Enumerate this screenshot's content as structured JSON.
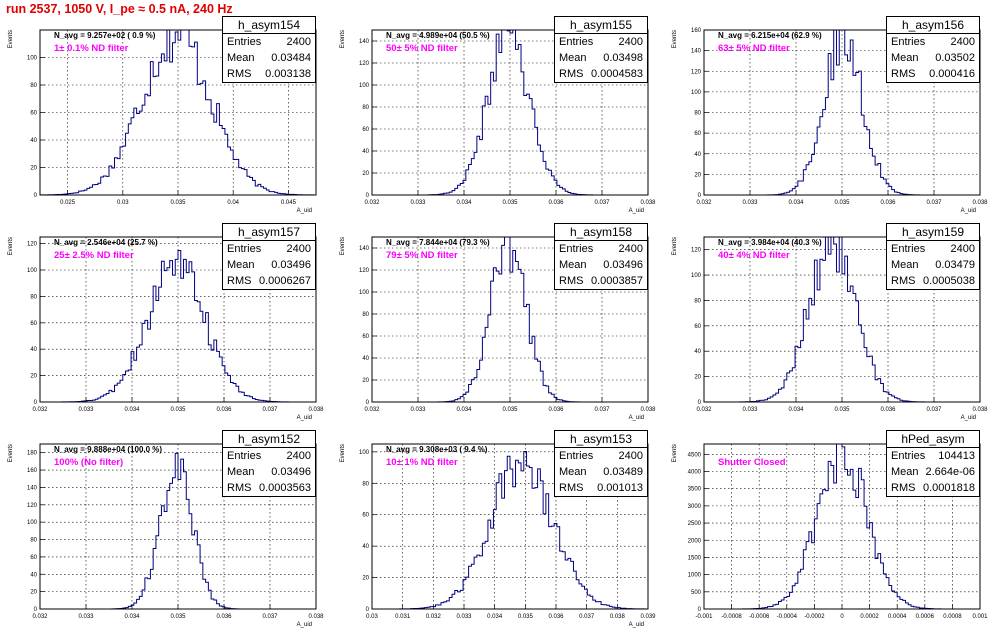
{
  "run_title": "run 2537,  1050 V, I_pe ≈ 0.5 nA, 240 Hz",
  "chart_data": [
    {
      "type": "histogram",
      "name": "h_asym154",
      "navg_label": "N_avg = 9.257e+02 ( 0.9 %)",
      "filter_label": "1± 0.1% ND filter",
      "stats": {
        "entries": "2400",
        "mean": "0.03484",
        "rms": "0.003138"
      },
      "xlabel": "A_uid",
      "ylabel": "Events",
      "xlim": [
        0.0225,
        0.0475
      ],
      "ylim": [
        0,
        120
      ],
      "x_ticks": [
        0.025,
        0.03,
        0.035,
        0.04,
        0.045
      ],
      "x_tick_labels": [
        "0.025",
        "0.03",
        "0.035",
        "0.04",
        "0.045"
      ],
      "y_ticks": [
        0,
        20,
        40,
        60,
        80,
        100
      ],
      "y_tick_labels": [
        "0",
        "20",
        "40",
        "60",
        "80",
        "100"
      ],
      "peak": 117
    },
    {
      "type": "histogram",
      "name": "h_asym155",
      "navg_label": "N_avg = 4.989e+04 (50.5 %)",
      "filter_label": "50± 5% ND filter",
      "stats": {
        "entries": "2400",
        "mean": "0.03498",
        "rms": "0.0004583"
      },
      "xlabel": "A_uid",
      "ylabel": "Events",
      "xlim": [
        0.032,
        0.038
      ],
      "ylim": [
        0,
        150
      ],
      "x_ticks": [
        0.032,
        0.033,
        0.034,
        0.035,
        0.036,
        0.037,
        0.038
      ],
      "x_tick_labels": [
        "0.032",
        "0.033",
        "0.034",
        "0.035",
        "0.036",
        "0.037",
        "0.038"
      ],
      "y_ticks": [
        0,
        20,
        40,
        60,
        80,
        100,
        120,
        140
      ],
      "y_tick_labels": [
        "0",
        "20",
        "40",
        "60",
        "80",
        "100",
        "120",
        "140"
      ],
      "peak": 145
    },
    {
      "type": "histogram",
      "name": "h_asym156",
      "navg_label": "N_avg = 6.215e+04 (62.9 %)",
      "filter_label": "63± 5% ND filter",
      "stats": {
        "entries": "2400",
        "mean": "0.03502",
        "rms": "0.000416"
      },
      "xlabel": "A_uid",
      "ylabel": "Events",
      "xlim": [
        0.032,
        0.038
      ],
      "ylim": [
        0,
        160
      ],
      "x_ticks": [
        0.032,
        0.033,
        0.034,
        0.035,
        0.036,
        0.037,
        0.038
      ],
      "x_tick_labels": [
        "0.032",
        "0.033",
        "0.034",
        "0.035",
        "0.036",
        "0.037",
        "0.038"
      ],
      "y_ticks": [
        0,
        20,
        40,
        60,
        80,
        100,
        120,
        140,
        160
      ],
      "y_tick_labels": [
        "0",
        "20",
        "40",
        "60",
        "80",
        "100",
        "120",
        "140",
        "160"
      ],
      "peak": 158
    },
    {
      "type": "histogram",
      "name": "h_asym157",
      "navg_label": "N_avg = 2.546e+04 (25.7 %)",
      "filter_label": "25± 2.5% ND filter",
      "stats": {
        "entries": "2400",
        "mean": "0.03496",
        "rms": "0.0006267"
      },
      "xlabel": "A_uid",
      "ylabel": "Events",
      "xlim": [
        0.032,
        0.038
      ],
      "ylim": [
        0,
        125
      ],
      "x_ticks": [
        0.032,
        0.033,
        0.034,
        0.035,
        0.036,
        0.037,
        0.038
      ],
      "x_tick_labels": [
        "0.032",
        "0.033",
        "0.034",
        "0.035",
        "0.036",
        "0.037",
        "0.038"
      ],
      "y_ticks": [
        0,
        20,
        40,
        60,
        80,
        100,
        120
      ],
      "y_tick_labels": [
        "0",
        "20",
        "40",
        "60",
        "80",
        "100",
        "120"
      ],
      "peak": 102
    },
    {
      "type": "histogram",
      "name": "h_asym158",
      "navg_label": "N_avg = 7.844e+04 (79.3 %)",
      "filter_label": "79± 5% ND filter",
      "stats": {
        "entries": "2400",
        "mean": "0.03496",
        "rms": "0.0003857"
      },
      "xlabel": "A_uid",
      "ylabel": "Events",
      "xlim": [
        0.032,
        0.038
      ],
      "ylim": [
        0,
        150
      ],
      "x_ticks": [
        0.032,
        0.033,
        0.034,
        0.035,
        0.036,
        0.037,
        0.038
      ],
      "x_tick_labels": [
        "0.032",
        "0.033",
        "0.034",
        "0.035",
        "0.036",
        "0.037",
        "0.038"
      ],
      "y_ticks": [
        0,
        20,
        40,
        60,
        80,
        100,
        120,
        140
      ],
      "y_tick_labels": [
        "0",
        "20",
        "40",
        "60",
        "80",
        "100",
        "120",
        "140"
      ],
      "peak": 145
    },
    {
      "type": "histogram",
      "name": "h_asym159",
      "navg_label": "N_avg = 3.984e+04 (40.3 %)",
      "filter_label": "40± 4% ND filter",
      "stats": {
        "entries": "2400",
        "mean": "0.03479",
        "rms": "0.0005038"
      },
      "xlabel": "A_uid",
      "ylabel": "Events",
      "xlim": [
        0.032,
        0.038
      ],
      "ylim": [
        0,
        130
      ],
      "x_ticks": [
        0.032,
        0.033,
        0.034,
        0.035,
        0.036,
        0.037,
        0.038
      ],
      "x_tick_labels": [
        "0.032",
        "0.033",
        "0.034",
        "0.035",
        "0.036",
        "0.037",
        "0.038"
      ],
      "y_ticks": [
        0,
        20,
        40,
        60,
        80,
        100,
        120
      ],
      "y_tick_labels": [
        "0",
        "20",
        "40",
        "60",
        "80",
        "100",
        "120"
      ],
      "peak": 128
    },
    {
      "type": "histogram",
      "name": "h_asym152",
      "navg_label": "N_avg = 9.888e+04 (100.0 %)",
      "filter_label": "100% (No filter)",
      "stats": {
        "entries": "2400",
        "mean": "0.03496",
        "rms": "0.0003563"
      },
      "xlabel": "A_uid",
      "ylabel": "Events",
      "xlim": [
        0.032,
        0.038
      ],
      "ylim": [
        0,
        190
      ],
      "x_ticks": [
        0.032,
        0.033,
        0.034,
        0.035,
        0.036,
        0.037,
        0.038
      ],
      "x_tick_labels": [
        "0.032",
        "0.033",
        "0.034",
        "0.035",
        "0.036",
        "0.037",
        "0.038"
      ],
      "y_ticks": [
        0,
        20,
        40,
        60,
        80,
        100,
        120,
        140,
        160,
        180
      ],
      "y_tick_labels": [
        "0",
        "20",
        "40",
        "60",
        "80",
        "100",
        "120",
        "140",
        "160",
        "180"
      ],
      "peak": 162
    },
    {
      "type": "histogram",
      "name": "h_asym153",
      "navg_label": "N_avg = 9.308e+03 ( 9.4 %)",
      "filter_label": "10± 1% ND filter",
      "stats": {
        "entries": "2400",
        "mean": "0.03489",
        "rms": "0.001013"
      },
      "xlabel": "A_uid",
      "ylabel": "Events",
      "xlim": [
        0.03,
        0.039
      ],
      "ylim": [
        0,
        105
      ],
      "x_ticks": [
        0.03,
        0.031,
        0.032,
        0.033,
        0.034,
        0.035,
        0.036,
        0.037,
        0.038,
        0.039
      ],
      "x_tick_labels": [
        "0.03",
        "0.031",
        "0.032",
        "0.033",
        "0.034",
        "0.035",
        "0.036",
        "0.037",
        "0.038",
        "0.039"
      ],
      "y_ticks": [
        0,
        20,
        40,
        60,
        80,
        100
      ],
      "y_tick_labels": [
        "0",
        "20",
        "40",
        "60",
        "80",
        "100"
      ],
      "peak": 95
    },
    {
      "type": "histogram",
      "name": "hPed_asym",
      "navg_label": "",
      "filter_label": "Shutter Closed",
      "stats": {
        "entries": "104413",
        "mean": "2.664e-06",
        "rms": "0.0001818"
      },
      "xlabel": "",
      "ylabel": "Events",
      "xlim": [
        -0.001,
        0.001
      ],
      "ylim": [
        0,
        4800
      ],
      "x_ticks": [
        -0.001,
        -0.0008,
        -0.0006,
        -0.0004,
        -0.0002,
        0,
        0.0002,
        0.0004,
        0.0006,
        0.0008,
        0.001
      ],
      "x_tick_labels": [
        "-0.001",
        "-0.0008",
        "-0.0006",
        "-0.0004",
        "-0.0002",
        "0",
        "0.0002",
        "0.0004",
        "0.0006",
        "0.0008",
        "0.001"
      ],
      "y_ticks": [
        0,
        500,
        1000,
        1500,
        2000,
        2500,
        3000,
        3500,
        4000,
        4500
      ],
      "y_tick_labels": [
        "0",
        "500",
        "1000",
        "1500",
        "2000",
        "2500",
        "3000",
        "3500",
        "4000",
        "4500"
      ],
      "peak": 4500
    }
  ]
}
